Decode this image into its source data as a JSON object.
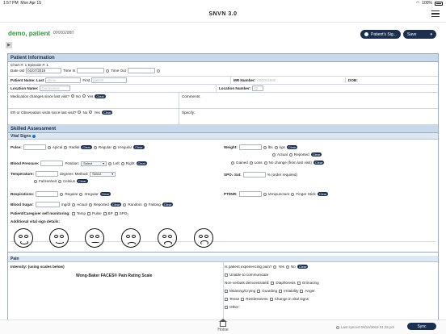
{
  "status": {
    "time": "1:57 PM",
    "date": "Mon Apr 15",
    "battery": "100%"
  },
  "app": {
    "title": "SNVN 3.0"
  },
  "patient": {
    "name": "demo, patient",
    "id": "000002880"
  },
  "header_buttons": {
    "patient_sign": "Patient's Sig...",
    "save": "Save"
  },
  "patient_info": {
    "section_title": "Patient Information",
    "chart_label": "Chart #: 1  Episode #: 1",
    "date_label": "Date old",
    "date_value": "01/07/2019",
    "time_in_label": "Time In",
    "time_out_label": "Time Out",
    "name_label": "Patient Name: Last",
    "last_name": "demo",
    "first_label": "First",
    "first_name": "patient",
    "mr_label": "MR Number:",
    "mr_value": "000002880",
    "dob_label": "DOB:",
    "location_name_label": "Location Name:",
    "location_name_value": "Dunmoreer",
    "location_number_label": "Location Number:",
    "location_number_value": "12",
    "med_changes_label": "Medication changes since last visit?",
    "er_label": "ER or Observation visits since last visit?",
    "comments_label": "Comments:",
    "specify_label": "Specify:",
    "no": "No",
    "yes": "Yes",
    "clear": "Clear"
  },
  "skilled": {
    "section_title": "Skilled Assessment",
    "vital_signs_title": "Vital Signs",
    "pulse_label": "Pulse:",
    "apical": "Apical",
    "radial": "Radial",
    "regular": "Regular",
    "irregular": "Irregular",
    "weight_label": "Weight:",
    "lbs": "lbs",
    "kgs": "kgs",
    "actual": "Actual",
    "reported": "Reported",
    "gained": "Gained",
    "loss": "Loss",
    "no_change": "No change (from last visit)",
    "bp_label": "Blood Pressure:",
    "position_label": "Position:",
    "select": "Select",
    "left": "Left",
    "right": "Right",
    "temp_label": "Temperature:",
    "degrees": "degrees",
    "method_label": "Method:",
    "fahrenheit": "Fahrenheit",
    "celsius": "Celsius",
    "spo2_label": "SPO₂ Sat:",
    "spo2_hint": "% (order required)",
    "resp_label": "Respirations:",
    "ptinr_label": "PT/INR:",
    "venipuncture": "Venipuncture",
    "finger_stick": "Finger Stick",
    "blood_sugar_label": "Blood Sugar:",
    "mgdl": "mg/dl",
    "random": "Random",
    "fasting": "Fasting",
    "self_monitoring_label": "Patient/Caregiver self monitoring:",
    "temp": "Temp",
    "pulse": "Pulse",
    "bp": "BP",
    "spo2": "SPO₂",
    "additional_label": "Additional vital sign details:"
  },
  "pain": {
    "section_title": "Pain",
    "intensity_label": "Intensity: (using scales below)",
    "scale_title": "Wong-Baker FACES® Pain Rating Scale",
    "experiencing_label": "Is patient experiencing pain?",
    "unable": "Unable to communicate",
    "nonverbals": "Non-verbals demonstrated:",
    "diaphoresis": "Diaphoresis",
    "grimacing": "Grimacing",
    "moaning": "Moaning/Crying",
    "guarding": "Guarding",
    "irritability": "Irritability",
    "anger": "Anger",
    "tense": "Tense",
    "restlessness": "Restlessness",
    "vital_change": "Change in vital signs",
    "other": "Other:"
  },
  "footer": {
    "home": "Home",
    "last_synced": "Last synced 04/15/2019 01:25 pm",
    "sync": "Sync"
  }
}
